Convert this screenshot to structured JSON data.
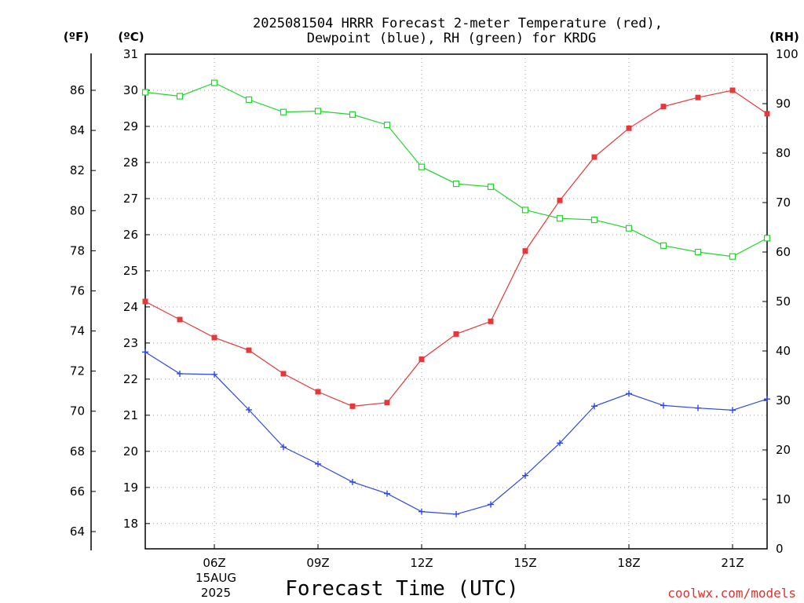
{
  "chart_data": {
    "type": "line",
    "title_lines": [
      "2025081504 HRRR Forecast 2-meter Temperature (red),",
      "Dewpoint (blue), RH (green) for KRDG"
    ],
    "xlabel": "Forecast Time (UTC)",
    "credit": "coolwx.com/models",
    "date_labels": [
      "15AUG",
      "2025"
    ],
    "units": {
      "fahrenheit": "(ºF)",
      "celsius": "(ºC)",
      "rh": "(RH)"
    },
    "x": [
      4,
      5,
      6,
      7,
      8,
      9,
      10,
      11,
      12,
      13,
      14,
      15,
      16,
      17,
      18,
      19,
      20,
      21,
      22
    ],
    "xlim": [
      4,
      22
    ],
    "x_ticks": [
      {
        "value": 6,
        "label": "06Z"
      },
      {
        "value": 9,
        "label": "09Z"
      },
      {
        "value": 12,
        "label": "12Z"
      },
      {
        "value": 15,
        "label": "15Z"
      },
      {
        "value": 18,
        "label": "18Z"
      },
      {
        "value": 21,
        "label": "21Z"
      }
    ],
    "celsius_axis": {
      "range": [
        17.3,
        31
      ],
      "ticks": [
        "18",
        "19",
        "20",
        "21",
        "22",
        "23",
        "24",
        "25",
        "26",
        "27",
        "28",
        "29",
        "30",
        "31"
      ]
    },
    "fahrenheit_axis": {
      "range": [
        63.14,
        87.8
      ],
      "ticks": [
        "64",
        "66",
        "68",
        "70",
        "72",
        "74",
        "76",
        "78",
        "80",
        "82",
        "84",
        "86"
      ]
    },
    "rh_axis": {
      "range": [
        0,
        100
      ],
      "ticks": [
        "0",
        "10",
        "20",
        "30",
        "40",
        "50",
        "60",
        "70",
        "80",
        "90",
        "100"
      ]
    },
    "grid": true,
    "series": [
      {
        "name": "Temperature (red)",
        "axis": "celsius",
        "color": "#e5383b",
        "marker": "filled-square",
        "values": [
          24.15,
          23.65,
          23.15,
          22.8,
          22.15,
          21.65,
          21.25,
          21.35,
          22.55,
          23.25,
          23.6,
          25.55,
          26.95,
          28.15,
          28.95,
          29.55,
          29.8,
          30.0,
          29.35
        ]
      },
      {
        "name": "Dewpoint (blue)",
        "axis": "celsius",
        "color": "#2f47e6",
        "marker": "plus",
        "values": [
          22.75,
          22.15,
          22.13,
          21.15,
          20.12,
          19.65,
          19.15,
          18.83,
          18.33,
          18.26,
          18.53,
          19.33,
          20.23,
          21.25,
          21.6,
          21.27,
          21.2,
          21.14,
          21.45
        ]
      },
      {
        "name": "RH (green)",
        "axis": "rh",
        "color": "#22d52e",
        "marker": "open-square",
        "values": [
          92.3,
          91.5,
          94.2,
          90.8,
          88.3,
          88.5,
          87.8,
          85.7,
          77.2,
          73.8,
          73.2,
          68.5,
          66.8,
          66.5,
          64.8,
          61.3,
          60.0,
          59.1,
          62.8
        ]
      }
    ]
  }
}
